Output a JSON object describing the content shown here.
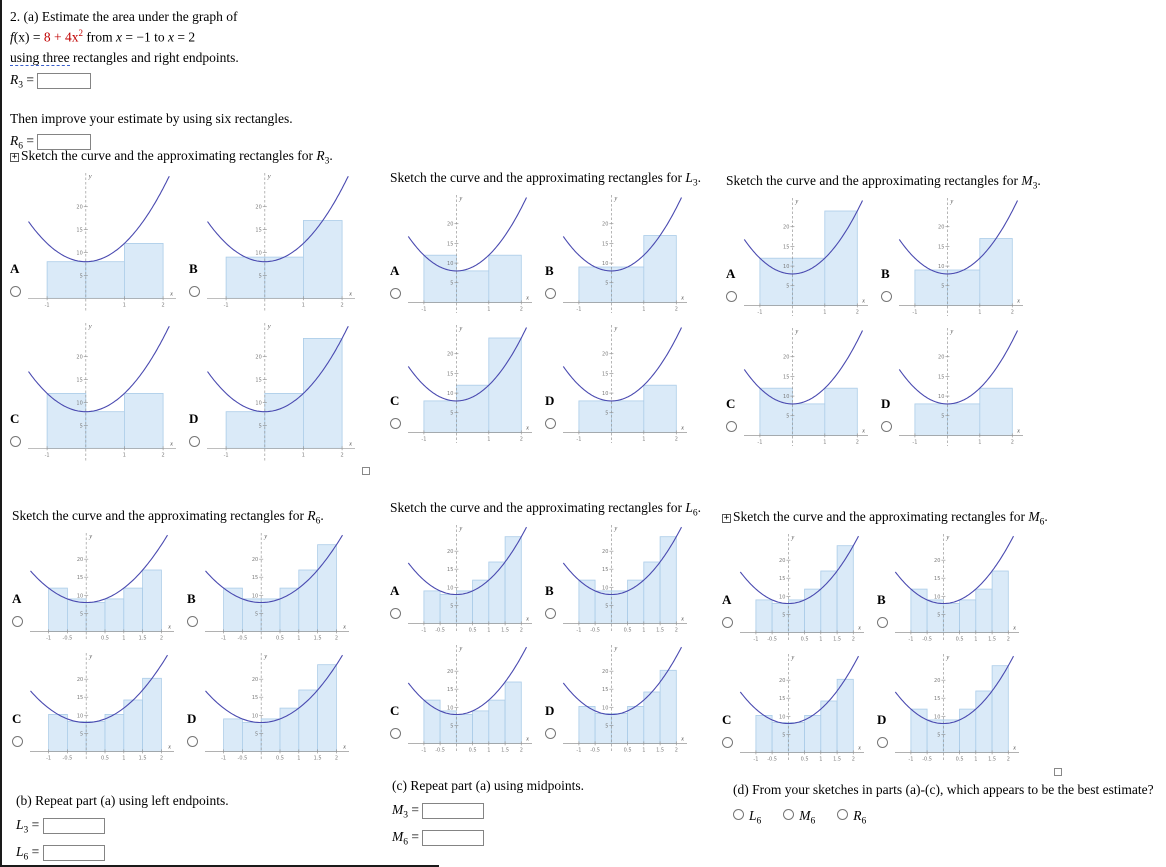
{
  "page": {
    "problem_number": "2.",
    "part_a": {
      "label": "(a)",
      "line1": "Estimate the area under the graph of",
      "fx_tokens": [
        {
          "t": "f",
          "i": true
        },
        {
          "t": "(x) = "
        },
        {
          "t": "8 + 4x",
          "red": true
        },
        {
          "t": "2",
          "red": true,
          "sup": true
        },
        {
          "t": " from "
        },
        {
          "t": "x",
          "i": true
        },
        {
          "t": " = −1 to "
        },
        {
          "t": "x",
          "i": true
        },
        {
          "t": " = 2"
        }
      ],
      "line2_underlined": "using three",
      "line2_rest": " rectangles and right endpoints.",
      "r3": {
        "var": "R",
        "sub": "3",
        "eq": " = "
      },
      "improve": "Then improve your estimate by using six rectangles.",
      "r6": {
        "var": "R",
        "sub": "6",
        "eq": " = "
      }
    },
    "part_b": {
      "label": "(b)",
      "text": "Repeat part (a) using left endpoints.",
      "fields": [
        {
          "var": "L",
          "sub": "3",
          "eq": " = "
        },
        {
          "var": "L",
          "sub": "6",
          "eq": " = "
        }
      ]
    },
    "part_c": {
      "label": "(c)",
      "text": "Repeat part (a) using midpoints.",
      "fields": [
        {
          "var": "M",
          "sub": "3",
          "eq": " = "
        },
        {
          "var": "M",
          "sub": "6",
          "eq": " = "
        }
      ]
    },
    "part_d": {
      "label": "(d)",
      "text": "From your sketches in parts (a)-(c), which appears to be the best estimate?",
      "choices": [
        {
          "var": "L",
          "sub": "6"
        },
        {
          "var": "M",
          "sub": "6"
        },
        {
          "var": "R",
          "sub": "6"
        }
      ]
    }
  },
  "icons": {
    "expand": "+"
  },
  "sketch_prompt": "Sketch the curve and the approximating rectangles for ",
  "title_suffix": ".",
  "groups": [
    {
      "var": "R",
      "sub": "3",
      "expand_icon": true,
      "corner_box": true,
      "size": "large",
      "options": [
        [
          "A",
          "low3"
        ],
        [
          "B",
          "M3"
        ],
        [
          "C",
          "L3"
        ],
        [
          "D",
          "R3"
        ]
      ]
    },
    {
      "var": "L",
      "sub": "3",
      "expand_icon": false,
      "corner_box": false,
      "size": "small",
      "options": [
        [
          "A",
          "L3"
        ],
        [
          "B",
          "M3"
        ],
        [
          "C",
          "R3"
        ],
        [
          "D",
          "low3"
        ]
      ]
    },
    {
      "var": "M",
      "sub": "3",
      "expand_icon": false,
      "corner_box": false,
      "size": "small",
      "options": [
        [
          "A",
          "U3"
        ],
        [
          "B",
          "M3"
        ],
        [
          "C",
          "L3"
        ],
        [
          "D",
          "low3"
        ]
      ]
    },
    {
      "var": "R",
      "sub": "6",
      "expand_icon": false,
      "corner_box": false,
      "size": "large6",
      "options": [
        [
          "A",
          "L6"
        ],
        [
          "B",
          "U6"
        ],
        [
          "C",
          "M6"
        ],
        [
          "D",
          "R6"
        ]
      ]
    },
    {
      "var": "L",
      "sub": "6",
      "expand_icon": false,
      "corner_box": false,
      "size": "small6",
      "options": [
        [
          "A",
          "R6"
        ],
        [
          "B",
          "U6"
        ],
        [
          "C",
          "L6"
        ],
        [
          "D",
          "M6"
        ]
      ]
    },
    {
      "var": "M",
      "sub": "6",
      "expand_icon": true,
      "corner_box": true,
      "size": "small6",
      "options": [
        [
          "A",
          "R6"
        ],
        [
          "B",
          "L6"
        ],
        [
          "C",
          "M6"
        ],
        [
          "D",
          "U6"
        ]
      ]
    }
  ],
  "curve": {
    "formula": "f(x) = 8 + 4x^2",
    "x_start": -1,
    "x_end": 2,
    "color": "#4a4ab0"
  },
  "rect_style": {
    "fill": "#daeaf8",
    "stroke": "#abcce8"
  },
  "axis": {
    "y_ticks": [
      5,
      10,
      15,
      20
    ],
    "x_label": "x",
    "y_label": "y"
  },
  "variants": {
    "low3": {
      "dx": 1,
      "heights": [
        8,
        8,
        12
      ],
      "xticks": [
        -1,
        1,
        2
      ]
    },
    "L3": {
      "dx": 1,
      "heights": [
        12,
        8,
        12
      ],
      "xticks": [
        -1,
        1,
        2
      ]
    },
    "M3": {
      "dx": 1,
      "heights": [
        9,
        9,
        17
      ],
      "xticks": [
        -1,
        1,
        2
      ]
    },
    "R3": {
      "dx": 1,
      "heights": [
        8,
        12,
        24
      ],
      "xticks": [
        -1,
        1,
        2
      ]
    },
    "U3": {
      "dx": 1,
      "heights": [
        12,
        12,
        24
      ],
      "xticks": [
        -1,
        1,
        2
      ]
    },
    "L6": {
      "dx": 0.5,
      "heights": [
        12,
        9,
        8,
        9,
        12,
        17
      ],
      "xticks": [
        -1,
        -0.5,
        0.5,
        1,
        1.5,
        2
      ]
    },
    "R6": {
      "dx": 0.5,
      "heights": [
        9,
        8,
        9,
        12,
        17,
        24
      ],
      "xticks": [
        -1,
        -0.5,
        0.5,
        1,
        1.5,
        2
      ]
    },
    "M6": {
      "dx": 0.5,
      "heights": [
        10.25,
        8.25,
        8.25,
        10.25,
        14.25,
        20.25
      ],
      "xticks": [
        -1,
        -0.5,
        0.5,
        1,
        1.5,
        2
      ]
    },
    "U6": {
      "dx": 0.5,
      "heights": [
        12,
        9,
        9,
        12,
        17,
        24
      ],
      "xticks": [
        -1,
        -0.5,
        0.5,
        1,
        1.5,
        2
      ]
    }
  }
}
